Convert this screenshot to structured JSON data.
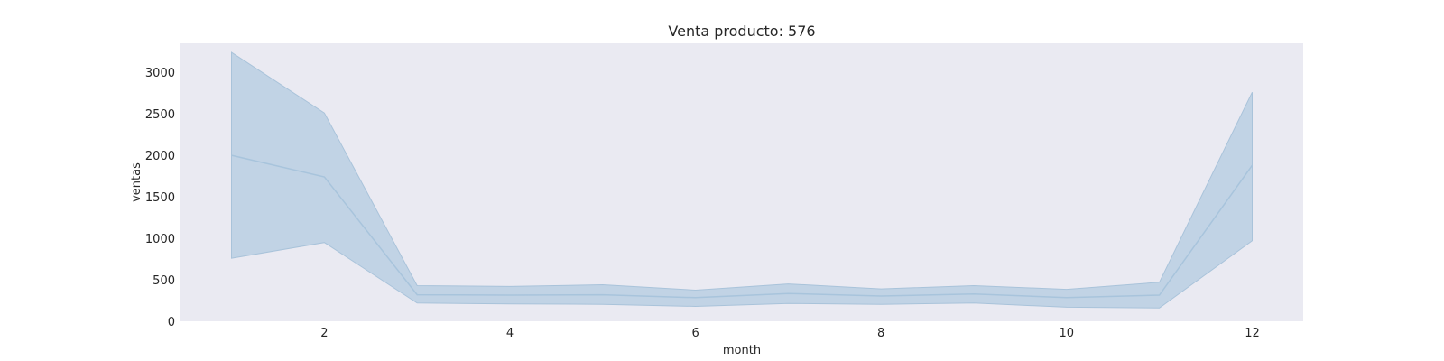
{
  "chart_data": {
    "type": "line",
    "title": "Venta producto: 576",
    "xlabel": "month",
    "ylabel": "ventas",
    "xlim": [
      0.45,
      12.55
    ],
    "ylim": [
      0,
      3350
    ],
    "xticks": [
      2,
      4,
      6,
      8,
      10,
      12
    ],
    "yticks": [
      0,
      500,
      1000,
      1500,
      2000,
      2500,
      3000
    ],
    "grid": false,
    "series": [
      {
        "x": [
          1,
          2,
          3,
          4,
          5,
          6,
          7,
          8,
          9,
          10,
          11,
          12
        ],
        "values": [
          2000,
          1740,
          320,
          315,
          320,
          285,
          335,
          305,
          330,
          285,
          315,
          1880
        ],
        "ci_upper": [
          3240,
          2510,
          430,
          420,
          440,
          375,
          450,
          390,
          430,
          385,
          470,
          2760
        ],
        "ci_lower": [
          760,
          950,
          220,
          210,
          205,
          180,
          215,
          205,
          220,
          170,
          160,
          970
        ]
      }
    ],
    "colors": {
      "background": "#eaeaf2",
      "line": "#a8c4dc",
      "band": "#c1d3e5",
      "band_stroke": "#a9c3da"
    }
  }
}
